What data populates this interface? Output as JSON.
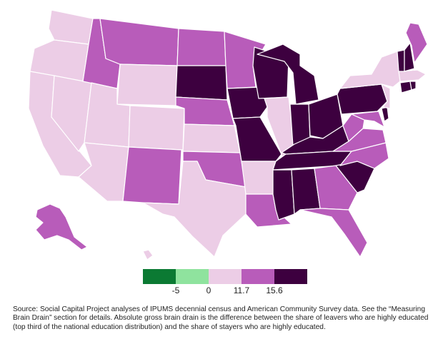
{
  "legend": {
    "colors": [
      "#0b7a33",
      "#8fe39e",
      "#eccde6",
      "#b85cba",
      "#3d003f"
    ],
    "ticks": [
      "-5",
      "0",
      "11.7",
      "15.6"
    ]
  },
  "categories": {
    "light": [
      "WA",
      "OR",
      "CA",
      "NV",
      "AZ",
      "UT",
      "WY",
      "CO",
      "KS",
      "TX",
      "AR",
      "IL",
      "NY",
      "NJ",
      "MA",
      "HI"
    ],
    "medium": [
      "ID",
      "MT",
      "ND",
      "MN",
      "NE",
      "NM",
      "OK",
      "LA",
      "GA",
      "FL",
      "NC",
      "VA",
      "WV",
      "MD",
      "ME",
      "AK"
    ],
    "dark": [
      "SD",
      "IA",
      "MO",
      "WI",
      "MI",
      "IN",
      "OH",
      "KY",
      "TN",
      "PA",
      "VT",
      "NH",
      "CT",
      "RI",
      "DE",
      "MS",
      "AL",
      "SC"
    ]
  },
  "source_note": "Source: Social Capital Project analyses of IPUMS decennial census and American Community Survey data. See the “Measuring Brain Drain” section for details. Absolute gross brain drain is the difference between the share of leavers who are highly educated (top third of the national education distribution) and the share of stayers who are highly educated."
}
